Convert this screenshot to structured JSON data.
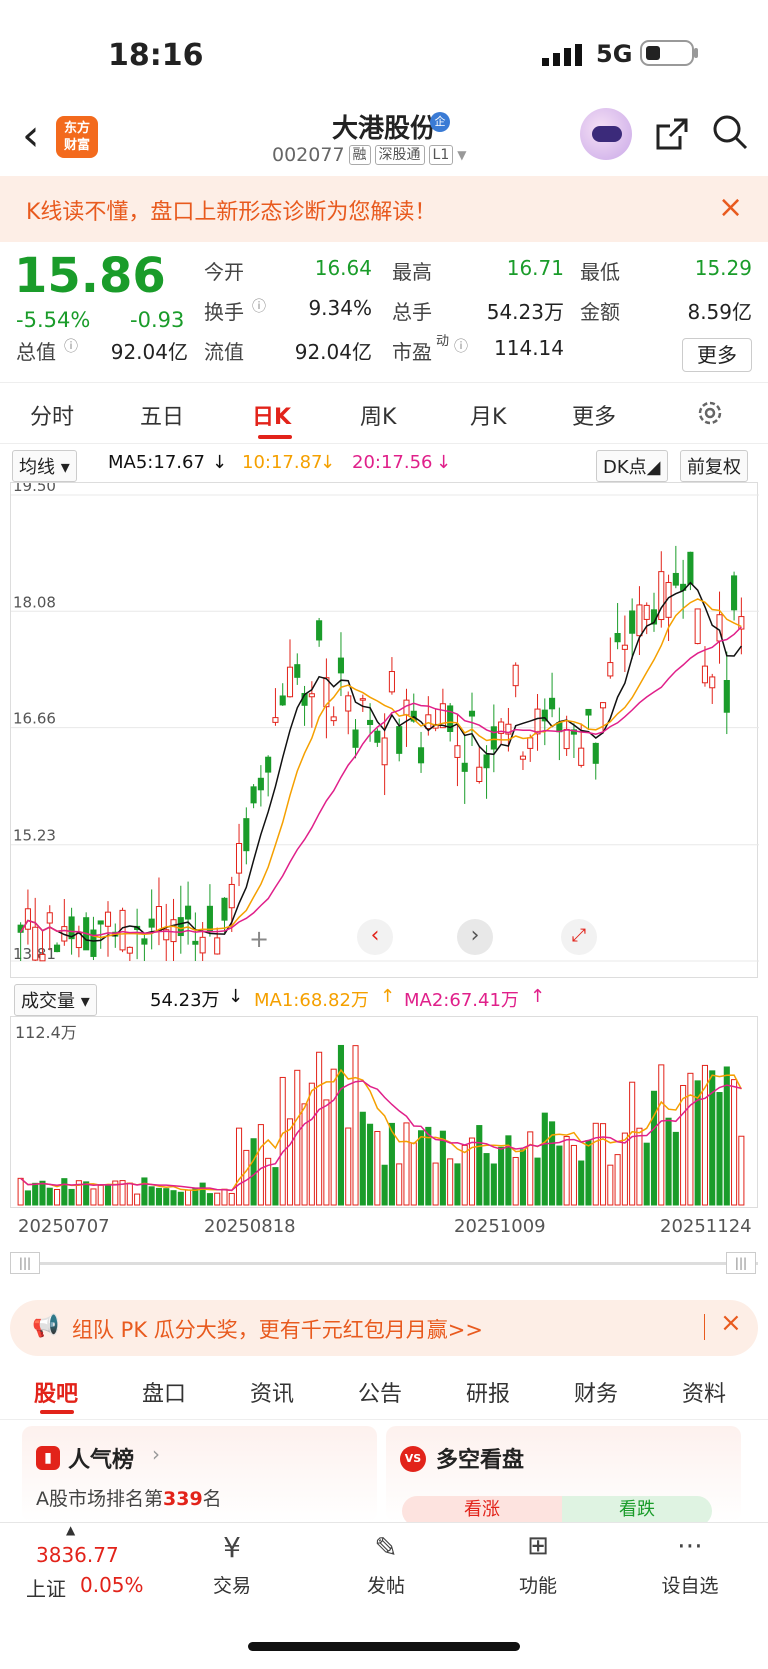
{
  "status": {
    "time": "18:16",
    "network": "5G"
  },
  "header": {
    "app_logo": "东方财富",
    "title": "大港股份",
    "qi_badge": "企",
    "code": "002077",
    "tags": [
      "融",
      "深股通",
      "L1"
    ]
  },
  "banner": {
    "text": "K线读不懂，盘口上新形态诊断为您解读！",
    "close": "×"
  },
  "quote": {
    "price": "15.86",
    "change_pct": "-5.54%",
    "change_val": "-0.93",
    "cells": [
      {
        "label": "今开",
        "value": "16.64",
        "color": "green"
      },
      {
        "label": "最高",
        "value": "16.71",
        "color": "green"
      },
      {
        "label": "最低",
        "value": "15.29",
        "color": "green"
      },
      {
        "label": "换手",
        "value": "9.34%",
        "color": "black"
      },
      {
        "label": "总手",
        "value": "54.23万",
        "color": "black"
      },
      {
        "label": "金额",
        "value": "8.59亿",
        "color": "black"
      },
      {
        "label": "总值",
        "value": "92.04亿",
        "color": "black"
      },
      {
        "label": "流值",
        "value": "92.04亿",
        "color": "black"
      },
      {
        "label": "市盈",
        "value": "114.14",
        "color": "black"
      }
    ],
    "more": "更多",
    "pe_sup": "动"
  },
  "tabs": [
    "分时",
    "五日",
    "日K",
    "周K",
    "月K",
    "更多"
  ],
  "ma": {
    "select": "均线",
    "ma5": "MA5:17.67",
    "ma10": "10:17.87",
    "ma20": "20:17.56",
    "dk": "DK点",
    "fq": "前复权"
  },
  "chart_data": {
    "type": "candlestick",
    "y_ticks": [
      "19.50",
      "18.08",
      "16.66",
      "15.23",
      "13.81"
    ],
    "ylim": [
      13.81,
      19.5
    ],
    "x_ticks": [
      "20250707",
      "20250818",
      "20251009",
      "20251124"
    ],
    "volume_max_label": "112.4万",
    "series": [
      {
        "name": "MA5",
        "color": "#111111"
      },
      {
        "name": "10",
        "color": "#f5a000"
      },
      {
        "name": "20",
        "color": "#e0208a"
      }
    ],
    "volume_series": [
      {
        "name": "MA1",
        "color": "#f5a000"
      },
      {
        "name": "MA2",
        "color": "#e0208a"
      }
    ]
  },
  "vol": {
    "select": "成交量",
    "value": "54.23万",
    "ma1": "MA1:68.82万",
    "ma2": "MA2:67.41万"
  },
  "promo": {
    "text": "组队 PK 瓜分大奖，更有千元红包月月赢>>",
    "close": "×"
  },
  "subtabs": [
    "股吧",
    "盘口",
    "资讯",
    "公告",
    "研报",
    "财务",
    "资料"
  ],
  "cards": {
    "left_title": "人气榜",
    "left_sub_pre": "A股市场排名第",
    "left_rank": "339",
    "left_sub_post": "名",
    "right_title": "多空看盘",
    "up": "看涨",
    "down": "看跌"
  },
  "bottom": {
    "index_val": "3836.77",
    "index_name": "上证",
    "index_pct": "0.05%",
    "items": [
      "交易",
      "发帖",
      "功能",
      "设自选"
    ]
  }
}
